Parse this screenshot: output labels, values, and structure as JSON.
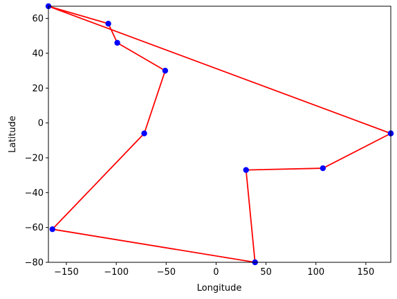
{
  "chart_data": {
    "type": "line",
    "title": "",
    "xlabel": "Longitude",
    "ylabel": "Latitude",
    "xlim": [
      -168,
      175
    ],
    "ylim": [
      -80,
      67
    ],
    "xticks": [
      -150,
      -100,
      -50,
      0,
      50,
      100,
      150
    ],
    "yticks": [
      -80,
      -60,
      -40,
      -20,
      0,
      20,
      40,
      60
    ],
    "grid": false,
    "series": [
      {
        "line_color": "#ff0000",
        "marker_color": "#0000ff",
        "x": [
          175,
          -168,
          -108,
          -99,
          -51,
          -72,
          -164,
          39,
          30,
          107,
          175
        ],
        "y": [
          -6,
          67,
          57,
          46,
          30,
          -6,
          -61,
          -80,
          -27,
          -26,
          -6
        ]
      }
    ]
  }
}
